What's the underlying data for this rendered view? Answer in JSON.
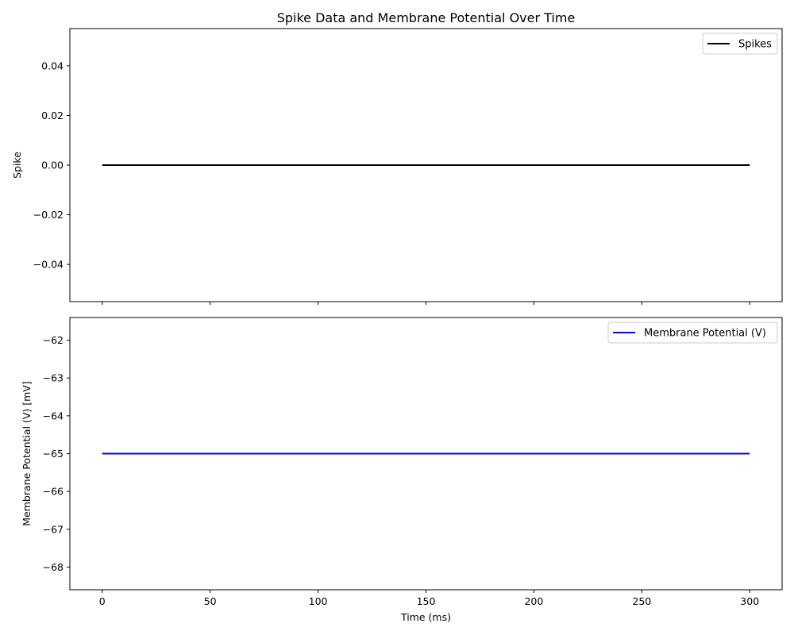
{
  "chart_data": [
    {
      "type": "line",
      "title": "Spike Data and Membrane Potential Over Time",
      "xlabel": "",
      "ylabel": "Spike",
      "xlim": [
        -15,
        315
      ],
      "ylim": [
        -0.055,
        0.055
      ],
      "xticks": [
        0,
        50,
        100,
        150,
        200,
        250,
        300
      ],
      "yticks": [
        -0.04,
        -0.02,
        0.0,
        0.02,
        0.04
      ],
      "ytick_labels": [
        "−0.04",
        "−0.02",
        "0.00",
        "0.02",
        "0.04"
      ],
      "x_tick_labels_shown": false,
      "legend_position": "upper right",
      "series": [
        {
          "name": "Spikes",
          "color": "#000000",
          "x": [
            0,
            300
          ],
          "y": [
            0,
            0
          ]
        }
      ]
    },
    {
      "type": "line",
      "title": "",
      "xlabel": "Time (ms)",
      "ylabel": "Membrane Potential (V) [mV]",
      "xlim": [
        -15,
        315
      ],
      "ylim": [
        -68.6,
        -61.4
      ],
      "xticks": [
        0,
        50,
        100,
        150,
        200,
        250,
        300
      ],
      "xtick_labels": [
        "0",
        "50",
        "100",
        "150",
        "200",
        "250",
        "300"
      ],
      "yticks": [
        -68,
        -67,
        -66,
        -65,
        -64,
        -63,
        -62
      ],
      "ytick_labels": [
        "−68",
        "−67",
        "−66",
        "−65",
        "−64",
        "−63",
        "−62"
      ],
      "x_tick_labels_shown": true,
      "legend_position": "upper right",
      "series": [
        {
          "name": "Membrane Potential (V)",
          "color": "#0000ff",
          "x": [
            0,
            300
          ],
          "y": [
            -65,
            -65
          ]
        }
      ]
    }
  ]
}
